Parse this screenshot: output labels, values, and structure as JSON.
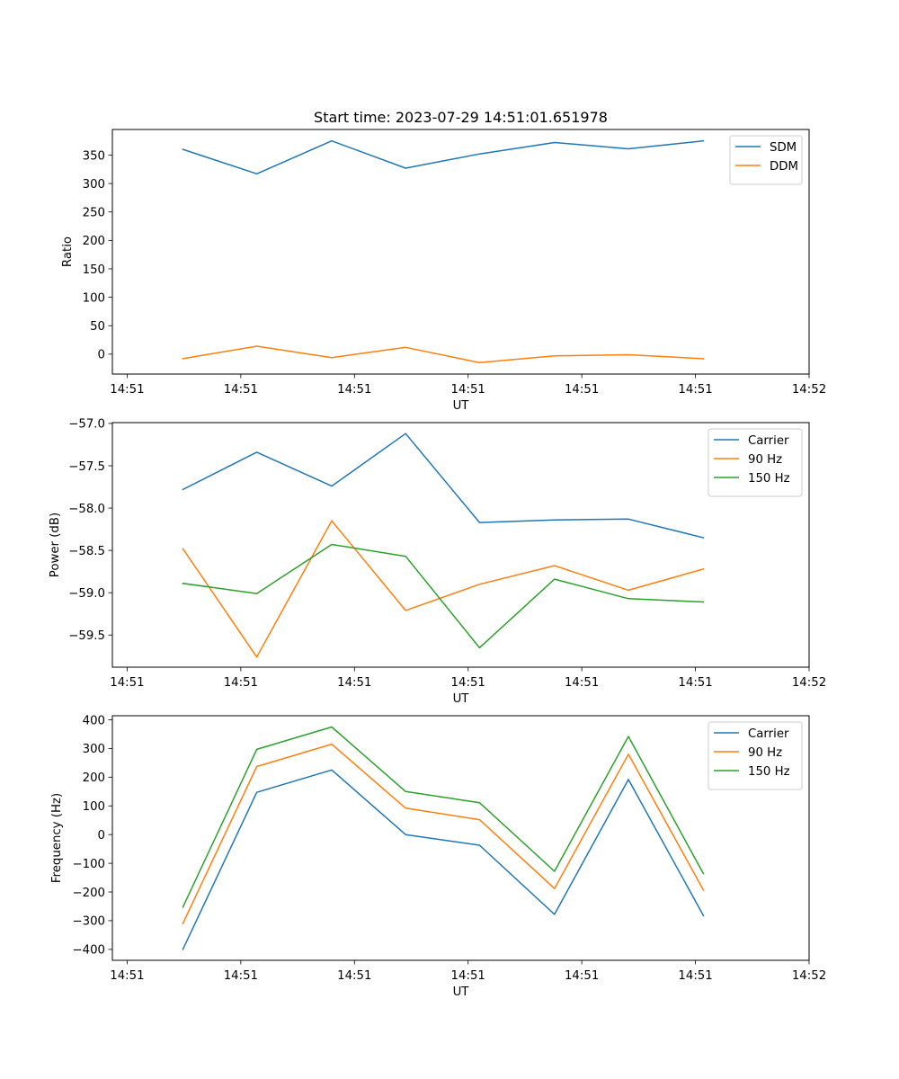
{
  "figure": {
    "title": "Start time: 2023-07-29 14:51:01.651978"
  },
  "chart_data": [
    {
      "type": "line",
      "title": "Start time: 2023-07-29 14:51:01.651978",
      "xlabel": "UT",
      "ylabel": "Ratio",
      "x_unit": "seconds after first tick",
      "x": [
        4.9,
        11.4,
        18.0,
        24.5,
        31.0,
        37.6,
        44.1,
        50.7
      ],
      "xlim": [
        -1.3,
        60.0
      ],
      "xticks": [
        0,
        10,
        20,
        30,
        40,
        50,
        60
      ],
      "xtick_labels": [
        "14:51",
        "14:51",
        "14:51",
        "14:51",
        "14:51",
        "14:51",
        "14:52"
      ],
      "ylim": [
        -35,
        395
      ],
      "yticks": [
        0,
        50,
        100,
        150,
        200,
        250,
        300,
        350
      ],
      "ytick_labels": [
        "0",
        "50",
        "100",
        "150",
        "200",
        "250",
        "300",
        "350"
      ],
      "grid": false,
      "legend_position": "top-right",
      "series": [
        {
          "name": "SDM",
          "color": "#1f77b4",
          "values": [
            360,
            317,
            375,
            327,
            352,
            372,
            361,
            375
          ]
        },
        {
          "name": "DDM",
          "color": "#ff7f0e",
          "values": [
            -8,
            14,
            -6,
            12,
            -15,
            -3,
            -1,
            -8
          ]
        }
      ]
    },
    {
      "type": "line",
      "title": "",
      "xlabel": "UT",
      "ylabel": "Power (dB)",
      "x_unit": "seconds after first tick",
      "x": [
        4.9,
        11.4,
        18.0,
        24.5,
        31.0,
        37.6,
        44.1,
        50.7
      ],
      "xlim": [
        -1.3,
        60.0
      ],
      "xticks": [
        0,
        10,
        20,
        30,
        40,
        50,
        60
      ],
      "xtick_labels": [
        "14:51",
        "14:51",
        "14:51",
        "14:51",
        "14:51",
        "14:51",
        "14:52"
      ],
      "ylim": [
        -59.88,
        -56.99
      ],
      "yticks": [
        -59.5,
        -59.0,
        -58.5,
        -58.0,
        -57.5,
        -57.0
      ],
      "ytick_labels": [
        "−59.5",
        "−59.0",
        "−58.5",
        "−58.0",
        "−57.5",
        "−57.0"
      ],
      "grid": false,
      "legend_position": "top-right",
      "series": [
        {
          "name": "Carrier",
          "color": "#1f77b4",
          "values": [
            -57.78,
            -57.34,
            -57.74,
            -57.12,
            -58.17,
            -58.14,
            -58.13,
            -58.35
          ]
        },
        {
          "name": "90 Hz",
          "color": "#ff7f0e",
          "values": [
            -58.48,
            -59.76,
            -58.15,
            -59.21,
            -58.9,
            -58.68,
            -58.97,
            -58.72
          ]
        },
        {
          "name": "150 Hz",
          "color": "#2ca02c",
          "values": [
            -58.89,
            -59.01,
            -58.43,
            -58.57,
            -59.65,
            -58.84,
            -59.07,
            -59.11
          ]
        }
      ]
    },
    {
      "type": "line",
      "title": "",
      "xlabel": "UT",
      "ylabel": "Frequency (Hz)",
      "x_unit": "seconds after first tick",
      "x": [
        4.9,
        11.4,
        18.0,
        24.5,
        31.0,
        37.6,
        44.1,
        50.7
      ],
      "xlim": [
        -1.3,
        60.0
      ],
      "xticks": [
        0,
        10,
        20,
        30,
        40,
        50,
        60
      ],
      "xtick_labels": [
        "14:51",
        "14:51",
        "14:51",
        "14:51",
        "14:51",
        "14:51",
        "14:52"
      ],
      "ylim": [
        -438,
        414
      ],
      "yticks": [
        -400,
        -300,
        -200,
        -100,
        0,
        100,
        200,
        300,
        400
      ],
      "ytick_labels": [
        "−400",
        "−300",
        "−200",
        "−100",
        "0",
        "100",
        "200",
        "300",
        "400"
      ],
      "grid": false,
      "legend_position": "top-right",
      "series": [
        {
          "name": "Carrier",
          "color": "#1f77b4",
          "values": [
            -400,
            147,
            225,
            0,
            -37,
            -278,
            192,
            -282
          ]
        },
        {
          "name": "90 Hz",
          "color": "#ff7f0e",
          "values": [
            -310,
            237,
            315,
            92,
            52,
            -188,
            280,
            -193
          ]
        },
        {
          "name": "150 Hz",
          "color": "#2ca02c",
          "values": [
            -253,
            297,
            375,
            150,
            111,
            -128,
            342,
            -136
          ]
        }
      ]
    }
  ]
}
